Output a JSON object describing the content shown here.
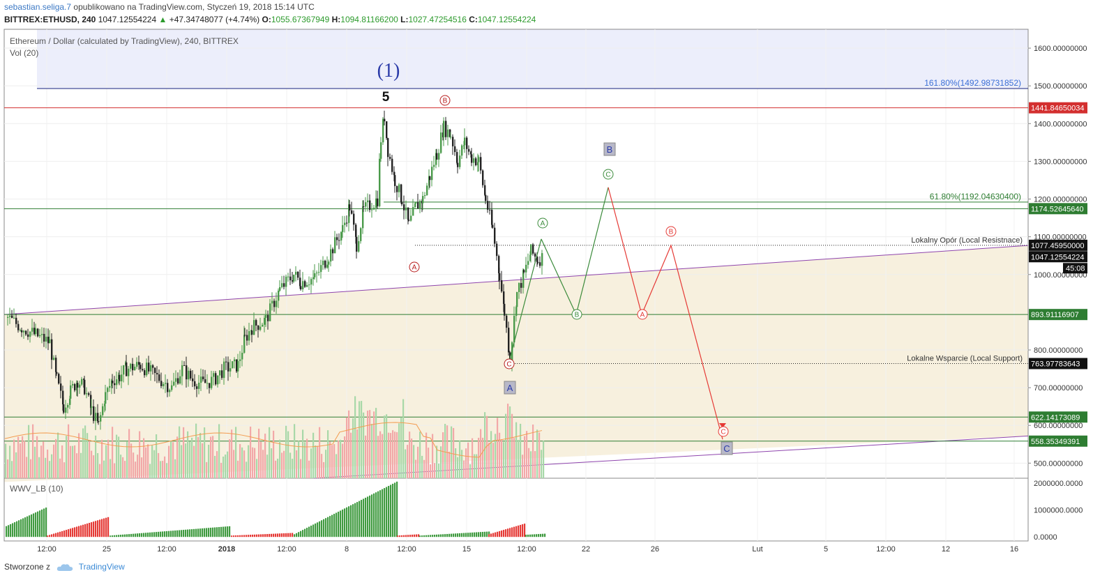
{
  "header": {
    "author": "sebastian.seliga.7",
    "published_text": "opublikowano na TradingView.com, Styczeń 19, 2018 15:14 UTC",
    "symbol": "BITTREX:ETHUSD, 240",
    "last": "1047.12554224",
    "change": "+47.34748077 (+4.74%)",
    "o_label": "O:",
    "open": "1055.67367949",
    "h_label": "H:",
    "high": "1094.81166200",
    "l_label": "L:",
    "low": "1027.47254516",
    "c_label": "C:",
    "close": "1047.12554224"
  },
  "chart_title": "Ethereum / Dollar (calculated by TradingView), 240, BITTREX",
  "volume_label": "Vol (20)",
  "indicator_label": "WWV_LB (10)",
  "footer": {
    "created": "Stworzone z",
    "brand": "TradingView"
  },
  "colors": {
    "up": "#4a9a4a",
    "down": "#222222",
    "vol_up": "#a8d8a8",
    "vol_down": "#f2a8a8",
    "resistance": "#d32f2f",
    "fib": "#2e7d32",
    "purple": "#8e44ad",
    "wave_green": "#3a8a3a",
    "wave_red": "#e53935",
    "blue_zone": "#eceefb",
    "beige_zone": "#f7f0de"
  },
  "chart_data": {
    "type": "line",
    "title": "Ethereum / Dollar (calculated by TradingView), 240, BITTREX",
    "y_axis": {
      "ticks": [
        "1600.00000000",
        "1500.00000000",
        "1400.00000000",
        "1300.00000000",
        "1200.00000000",
        "1100.00000000",
        "1000.00000000",
        "800.00000000",
        "700.00000000",
        "600.00000000",
        "500.00000000"
      ],
      "tick_values": [
        1600,
        1500,
        1400,
        1300,
        1200,
        1100,
        1000,
        800,
        700,
        600,
        500
      ],
      "range": [
        460,
        1650
      ]
    },
    "indicator_axis": {
      "ticks": [
        "2000000.0000",
        "1000000.0000",
        "0.0000"
      ],
      "tick_values": [
        2000000,
        1000000,
        0
      ],
      "range": [
        -150000,
        2150000
      ]
    },
    "x_axis": {
      "ticks": [
        "12:00",
        "25",
        "12:00",
        "2018",
        "12:00",
        "8",
        "12:00",
        "15",
        "12:00",
        "22",
        "26",
        "Lut",
        "5",
        "12:00",
        "12",
        "16"
      ],
      "tick_pos": [
        67,
        153,
        239,
        325,
        411,
        497,
        583,
        669,
        755,
        840,
        939,
        1086,
        1184,
        1270,
        1356,
        1454
      ]
    },
    "levels": [
      {
        "label": "1441.84650034",
        "value": 1441.8465,
        "kind": "resistance"
      },
      {
        "label": "1174.52645640",
        "value": 1174.5265,
        "kind": "fib"
      },
      {
        "label": "893.91116907",
        "value": 893.9112,
        "kind": "fib"
      },
      {
        "label": "622.14173089",
        "value": 622.1417,
        "kind": "fib"
      },
      {
        "label": "558.35349391",
        "value": 558.3535,
        "kind": "fib"
      }
    ],
    "dotted_levels": [
      {
        "label": "1077.45950000",
        "value": 1077.4595,
        "text": "Lokalny Opór (Local Resistnace)"
      },
      {
        "label": "763.97783643",
        "value": 763.9778,
        "text": "Lokalne Wsparcie (Local Support)"
      }
    ],
    "price_tag": {
      "label": "1047.12554224",
      "value": 1047.1255,
      "countdown": "45:08"
    },
    "fib_labels": [
      {
        "text": "161.80%(1492.98731852)",
        "value": 1492.98731852
      },
      {
        "text": "61.80%(1192.04630400)",
        "value": 1192.046304
      }
    ],
    "wave_labels": {
      "big": "(1)",
      "five": "5",
      "boxes": [
        "B",
        "A",
        "C"
      ],
      "circles": [
        "A",
        "B",
        "C"
      ]
    },
    "projection_green": [
      [
        776,
        1094
      ],
      [
        826,
        894
      ],
      [
        872,
        1231
      ]
    ],
    "projection_red": [
      [
        872,
        1231
      ],
      [
        920,
        894
      ],
      [
        962,
        1077
      ],
      [
        1036,
        563
      ]
    ],
    "price_series": [
      [
        10,
        885
      ],
      [
        30,
        860
      ],
      [
        50,
        840
      ],
      [
        70,
        820
      ],
      [
        80,
        720
      ],
      [
        90,
        650
      ],
      [
        100,
        690
      ],
      [
        110,
        720
      ],
      [
        120,
        700
      ],
      [
        130,
        640
      ],
      [
        140,
        600
      ],
      [
        150,
        680
      ],
      [
        160,
        720
      ],
      [
        170,
        730
      ],
      [
        180,
        750
      ],
      [
        200,
        760
      ],
      [
        215,
        740
      ],
      [
        230,
        720
      ],
      [
        245,
        700
      ],
      [
        260,
        750
      ],
      [
        275,
        720
      ],
      [
        290,
        710
      ],
      [
        305,
        720
      ],
      [
        320,
        750
      ],
      [
        340,
        760
      ],
      [
        350,
        830
      ],
      [
        360,
        860
      ],
      [
        380,
        880
      ],
      [
        400,
        960
      ],
      [
        420,
        1000
      ],
      [
        430,
        980
      ],
      [
        450,
        990
      ],
      [
        470,
        1050
      ],
      [
        490,
        1120
      ],
      [
        500,
        1180
      ],
      [
        510,
        1080
      ],
      [
        520,
        1170
      ],
      [
        540,
        1200
      ],
      [
        545,
        1360
      ],
      [
        550,
        1420
      ],
      [
        555,
        1330
      ],
      [
        565,
        1250
      ],
      [
        575,
        1200
      ],
      [
        585,
        1130
      ],
      [
        595,
        1180
      ],
      [
        605,
        1200
      ],
      [
        615,
        1260
      ],
      [
        625,
        1320
      ],
      [
        635,
        1390
      ],
      [
        645,
        1370
      ],
      [
        655,
        1300
      ],
      [
        665,
        1350
      ],
      [
        675,
        1310
      ],
      [
        685,
        1300
      ],
      [
        695,
        1200
      ],
      [
        705,
        1120
      ],
      [
        715,
        1000
      ],
      [
        722,
        900
      ],
      [
        730,
        780
      ],
      [
        740,
        950
      ],
      [
        750,
        1000
      ],
      [
        760,
        1060
      ],
      [
        770,
        1040
      ],
      [
        778,
        1047
      ]
    ],
    "wwv_green1": [
      8,
      66
    ],
    "wwv_red1": [
      67,
      156
    ],
    "wwv_green2": [
      157,
      330
    ],
    "wwv_red2": [
      331,
      420
    ],
    "wwv_green3": [
      421,
      568
    ],
    "wwv_red3": [
      569,
      600
    ],
    "wwv_green4": [
      601,
      700
    ],
    "wwv_red4": [
      700,
      752
    ],
    "wwv_green5": [
      753,
      780
    ]
  }
}
